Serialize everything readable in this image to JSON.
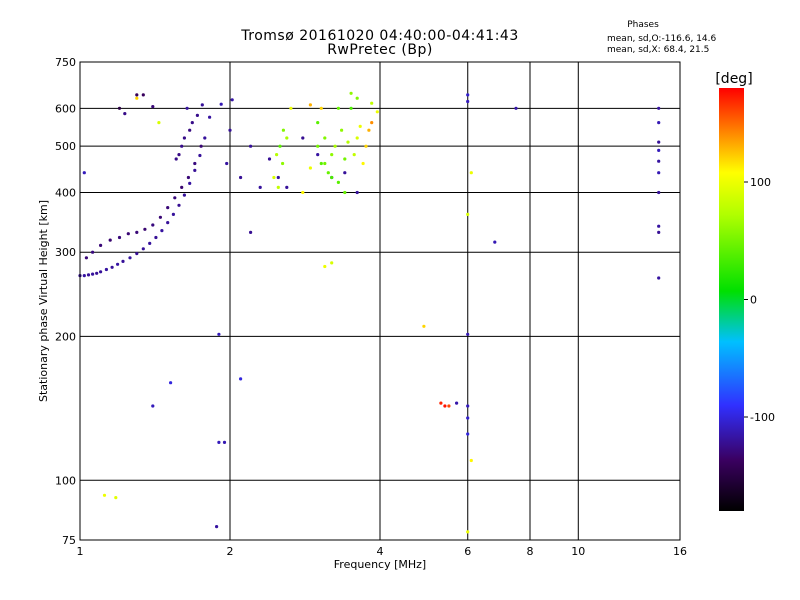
{
  "chart_data": {
    "type": "scatter",
    "title_line1": "Tromsø 20161020 04:40:00-04:41:43",
    "title_line2": "RwPretec (Bp)",
    "xlabel": "Frequency [MHz]",
    "ylabel": "Stationary phase Virtual Height [km]",
    "x_scale": "log",
    "y_scale": "log",
    "xlim": [
      1,
      16
    ],
    "ylim": [
      75,
      750
    ],
    "x_ticks": [
      1,
      2,
      4,
      6,
      8,
      10,
      16
    ],
    "y_ticks": [
      75,
      100,
      200,
      300,
      400,
      500,
      600,
      750
    ],
    "grid": true,
    "stats": {
      "title": "Phases",
      "line_o": "mean, sd,O:-116.6, 14.6",
      "line_x": "mean, sd,X:  68.4, 21.5"
    },
    "colorbar": {
      "label": "[deg]",
      "range": [
        -180,
        180
      ],
      "ticks": [
        100,
        0,
        -100
      ],
      "tick_labels": [
        "100",
        "0",
        "-100"
      ]
    },
    "series": [
      {
        "points": [
          [
            1.0,
            268,
            -120
          ],
          [
            1.02,
            268,
            -118
          ],
          [
            1.04,
            269,
            -120
          ],
          [
            1.06,
            270,
            -119
          ],
          [
            1.08,
            271,
            -121
          ],
          [
            1.1,
            273,
            -120
          ],
          [
            1.13,
            276,
            -118
          ],
          [
            1.16,
            279,
            -120
          ],
          [
            1.19,
            283,
            -117
          ],
          [
            1.22,
            287,
            -120
          ],
          [
            1.26,
            292,
            -118
          ],
          [
            1.3,
            298,
            -122
          ],
          [
            1.34,
            305,
            -120
          ],
          [
            1.38,
            313,
            -119
          ],
          [
            1.42,
            322,
            -121
          ],
          [
            1.46,
            333,
            -118
          ],
          [
            1.5,
            346,
            -120
          ],
          [
            1.54,
            360,
            -119
          ],
          [
            1.58,
            376,
            -122
          ],
          [
            1.62,
            395,
            -120
          ],
          [
            1.66,
            418,
            -118
          ],
          [
            1.7,
            445,
            -121
          ],
          [
            1.74,
            478,
            -120
          ],
          [
            1.78,
            520,
            -119
          ],
          [
            1.82,
            575,
            -118
          ],
          [
            1.03,
            292,
            -130
          ],
          [
            1.06,
            300,
            -128
          ],
          [
            1.1,
            310,
            -130
          ],
          [
            1.15,
            318,
            -132
          ],
          [
            1.2,
            322,
            -129
          ],
          [
            1.25,
            328,
            -131
          ],
          [
            1.3,
            330,
            -130
          ],
          [
            1.35,
            335,
            -132
          ],
          [
            1.4,
            342,
            -128
          ],
          [
            1.45,
            355,
            -131
          ],
          [
            1.5,
            372,
            -130
          ],
          [
            1.55,
            390,
            -129
          ],
          [
            1.6,
            410,
            -132
          ],
          [
            1.65,
            430,
            -130
          ],
          [
            1.7,
            460,
            -128
          ],
          [
            1.75,
            500,
            -131
          ],
          [
            1.62,
            520,
            -125
          ],
          [
            1.66,
            540,
            -127
          ],
          [
            1.68,
            560,
            -125
          ],
          [
            1.72,
            580,
            -124
          ],
          [
            1.58,
            480,
            -126
          ],
          [
            1.6,
            500,
            -124
          ],
          [
            1.56,
            470,
            -125
          ],
          [
            1.64,
            600,
            -118
          ],
          [
            1.76,
            610,
            -120
          ],
          [
            1.02,
            440,
            -110
          ],
          [
            1.3,
            640,
            -140
          ],
          [
            1.34,
            640,
            -138
          ],
          [
            1.4,
            605,
            -130
          ],
          [
            1.23,
            585,
            -125
          ],
          [
            1.2,
            600,
            -150
          ],
          [
            1.92,
            612,
            -112
          ],
          [
            2.02,
            625,
            -116
          ],
          [
            2.0,
            540,
            -120
          ],
          [
            1.97,
            460,
            -118
          ],
          [
            2.1,
            430,
            -121
          ],
          [
            2.2,
            500,
            -120
          ],
          [
            2.3,
            410,
            -119
          ],
          [
            2.4,
            470,
            -121
          ],
          [
            2.5,
            430,
            -118
          ],
          [
            2.6,
            410,
            -120
          ],
          [
            2.8,
            520,
            -122
          ],
          [
            3.0,
            480,
            -118
          ],
          [
            3.2,
            430,
            -121
          ],
          [
            3.4,
            440,
            -120
          ],
          [
            3.6,
            400,
            -119
          ],
          [
            2.2,
            330,
            -122
          ],
          [
            6.0,
            640,
            -105
          ],
          [
            6.0,
            620,
            -110
          ],
          [
            6.8,
            315,
            -112
          ],
          [
            7.5,
            600,
            -115
          ],
          [
            14.5,
            600,
            -118
          ],
          [
            14.5,
            560,
            -112
          ],
          [
            14.5,
            510,
            -120
          ],
          [
            14.5,
            490,
            -110
          ],
          [
            14.5,
            465,
            -118
          ],
          [
            14.5,
            440,
            -112
          ],
          [
            14.5,
            400,
            -120
          ],
          [
            14.5,
            340,
            -118
          ],
          [
            14.5,
            330,
            -121
          ],
          [
            14.5,
            265,
            -118
          ],
          [
            1.9,
            120,
            -110
          ],
          [
            1.95,
            120,
            -113
          ],
          [
            1.88,
            80,
            -118
          ],
          [
            1.9,
            202,
            -110
          ],
          [
            2.1,
            163,
            -100
          ],
          [
            1.52,
            160,
            -100
          ],
          [
            1.4,
            143,
            -110
          ],
          [
            6.0,
            202,
            -112
          ],
          [
            6.0,
            143,
            -110
          ],
          [
            6.0,
            125,
            -100
          ],
          [
            5.7,
            145,
            -115
          ],
          [
            6.0,
            135,
            -105
          ]
        ]
      },
      {
        "points": [
          [
            2.52,
            500,
            40
          ],
          [
            2.55,
            460,
            60
          ],
          [
            2.6,
            520,
            70
          ],
          [
            2.48,
            480,
            75
          ],
          [
            2.56,
            540,
            55
          ],
          [
            2.45,
            430,
            90
          ],
          [
            2.65,
            600,
            100
          ],
          [
            2.5,
            410,
            80
          ],
          [
            3.0,
            500,
            50
          ],
          [
            3.05,
            460,
            40
          ],
          [
            3.1,
            520,
            55
          ],
          [
            3.15,
            440,
            45
          ],
          [
            3.2,
            480,
            60
          ],
          [
            3.25,
            500,
            70
          ],
          [
            3.3,
            420,
            40
          ],
          [
            3.35,
            540,
            60
          ],
          [
            3.4,
            470,
            50
          ],
          [
            3.45,
            510,
            75
          ],
          [
            3.55,
            480,
            80
          ],
          [
            3.6,
            520,
            90
          ],
          [
            3.65,
            550,
            100
          ],
          [
            3.7,
            460,
            110
          ],
          [
            3.75,
            500,
            120
          ],
          [
            3.8,
            540,
            130
          ],
          [
            3.85,
            560,
            140
          ],
          [
            3.5,
            600,
            35
          ],
          [
            3.6,
            630,
            55
          ],
          [
            3.2,
            430,
            35
          ],
          [
            3.1,
            460,
            50
          ],
          [
            3.3,
            600,
            45
          ],
          [
            3.0,
            560,
            40
          ],
          [
            3.4,
            400,
            45
          ],
          [
            2.9,
            450,
            100
          ],
          [
            2.8,
            400,
            110
          ],
          [
            3.95,
            590,
            100
          ],
          [
            1.44,
            560,
            90
          ],
          [
            1.3,
            630,
            120
          ],
          [
            1.12,
            93,
            100
          ],
          [
            1.18,
            92,
            95
          ],
          [
            4.9,
            210,
            120
          ],
          [
            5.4,
            143,
            175
          ],
          [
            5.3,
            145,
            170
          ],
          [
            5.5,
            143,
            160
          ],
          [
            3.1,
            280,
            100
          ],
          [
            3.2,
            285,
            90
          ],
          [
            6.0,
            360,
            90
          ],
          [
            6.1,
            440,
            100
          ],
          [
            6.1,
            110,
            110
          ],
          [
            6.0,
            78,
            100
          ],
          [
            3.85,
            615,
            80
          ],
          [
            3.5,
            645,
            60
          ],
          [
            2.9,
            610,
            130
          ],
          [
            3.05,
            600,
            120
          ]
        ]
      }
    ]
  }
}
